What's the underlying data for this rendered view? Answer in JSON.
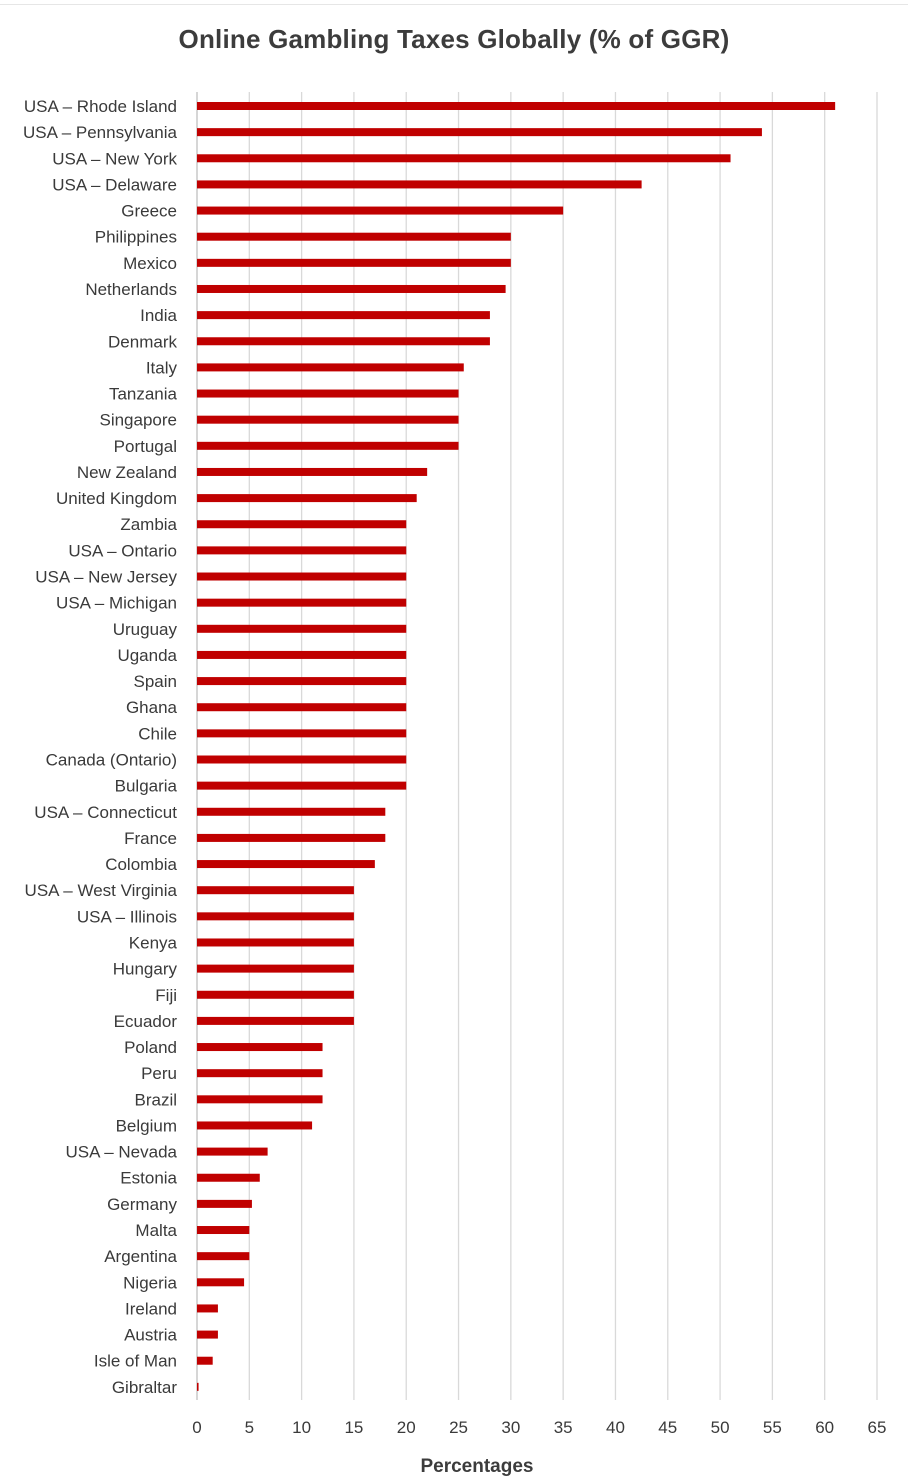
{
  "chart_data": {
    "type": "bar",
    "orientation": "horizontal",
    "title": "Online Gambling Taxes Globally (% of GGR)",
    "xlabel": "Percentages",
    "ylabel": "",
    "xlim": [
      0,
      65
    ],
    "x_ticks": [
      0,
      5,
      10,
      15,
      20,
      25,
      30,
      35,
      40,
      45,
      50,
      55,
      60,
      65
    ],
    "grid": "vertical",
    "legend": "none",
    "bar_color": "#c00000",
    "categories": [
      "USA – Rhode Island",
      "USA – Pennsylvania",
      "USA – New York",
      "USA – Delaware",
      "Greece",
      "Philippines",
      "Mexico",
      "Netherlands",
      "India",
      "Denmark",
      "Italy",
      "Tanzania",
      "Singapore",
      "Portugal",
      "New Zealand",
      "United Kingdom",
      "Zambia",
      "USA – Ontario",
      "USA – New Jersey",
      "USA – Michigan",
      "Uruguay",
      "Uganda",
      "Spain",
      "Ghana",
      "Chile",
      "Canada (Ontario)",
      "Bulgaria",
      "USA – Connecticut",
      "France",
      "Colombia",
      "USA – West Virginia",
      "USA – Illinois",
      "Kenya",
      "Hungary",
      "Fiji",
      "Ecuador",
      "Poland",
      "Peru",
      "Brazil",
      "Belgium",
      "USA – Nevada",
      "Estonia",
      "Germany",
      "Malta",
      "Argentina",
      "Nigeria",
      "Ireland",
      "Austria",
      "Isle of Man",
      "Gibraltar"
    ],
    "values": [
      61,
      54,
      51,
      42.5,
      35,
      30,
      30,
      29.5,
      28,
      28,
      25.5,
      25,
      25,
      25,
      22,
      21,
      20,
      20,
      20,
      20,
      20,
      20,
      20,
      20,
      20,
      20,
      20,
      18,
      18,
      17,
      15,
      15,
      15,
      15,
      15,
      15,
      12,
      12,
      12,
      11,
      6.75,
      6,
      5.25,
      5,
      5,
      4.5,
      2,
      2,
      1.5,
      0.15
    ]
  }
}
